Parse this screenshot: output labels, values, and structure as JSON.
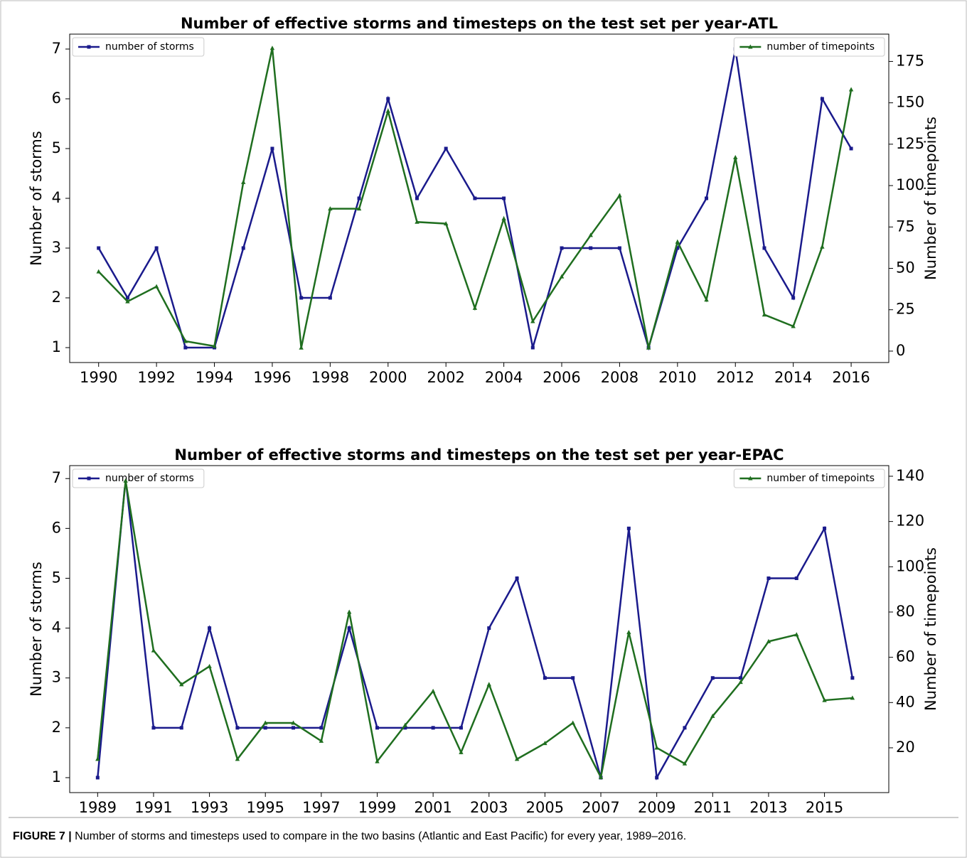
{
  "chart_data": [
    {
      "type": "line",
      "title": "Number of effective storms and timesteps on the test set per year-ATL",
      "ylabel": "Number of storms",
      "y2label": "Number of timepoints",
      "x": [
        1990,
        1991,
        1992,
        1993,
        1994,
        1995,
        1996,
        1997,
        1998,
        1999,
        2000,
        2001,
        2002,
        2003,
        2004,
        2005,
        2006,
        2007,
        2008,
        2009,
        2010,
        2011,
        2012,
        2013,
        2014,
        2015,
        2016
      ],
      "xlim": [
        1989.0,
        2017.3
      ],
      "xticks": [
        1990,
        1992,
        1994,
        1996,
        1998,
        2000,
        2002,
        2004,
        2006,
        2008,
        2010,
        2012,
        2014,
        2016
      ],
      "ylim": [
        0.7,
        7.3
      ],
      "yticks": [
        1,
        2,
        3,
        4,
        5,
        6,
        7
      ],
      "y2lim": [
        -6.9,
        191.5
      ],
      "y2ticks": [
        0,
        25,
        50,
        75,
        100,
        125,
        150,
        175
      ],
      "series": [
        {
          "name": "number of storms",
          "color": "#1a1a8c",
          "marker": "square",
          "legend": "upper left",
          "values": [
            3,
            2,
            3,
            1,
            1,
            3,
            5,
            2,
            2,
            4,
            6,
            4,
            5,
            4,
            4,
            1,
            3,
            3,
            3,
            1,
            3,
            4,
            7,
            3,
            2,
            6,
            5
          ]
        },
        {
          "name": "number of timepoints",
          "color": "#1f6e1f",
          "marker": "triangle",
          "legend": "upper right",
          "axis": "y2",
          "values": [
            48,
            30,
            39,
            6,
            3,
            102,
            183,
            2,
            86,
            86,
            145,
            78,
            77,
            26,
            80,
            18,
            45,
            70,
            94,
            2,
            66,
            31,
            117,
            22,
            15,
            63,
            158
          ]
        }
      ]
    },
    {
      "type": "line",
      "title": "Number of effective storms and timesteps on the test set per year-EPAC",
      "ylabel": "Number of storms",
      "y2label": "Number of timepoints",
      "x": [
        1989,
        1990,
        1991,
        1992,
        1993,
        1994,
        1995,
        1996,
        1997,
        1998,
        1999,
        2000,
        2001,
        2002,
        2003,
        2004,
        2005,
        2006,
        2007,
        2008,
        2009,
        2010,
        2011,
        2012,
        2013,
        2014,
        2015,
        2016
      ],
      "xlim": [
        1988.0,
        2017.3
      ],
      "xticks": [
        1989,
        1991,
        1993,
        1995,
        1997,
        1999,
        2001,
        2003,
        2005,
        2007,
        2009,
        2011,
        2013,
        2015
      ],
      "ylim": [
        0.7,
        7.26
      ],
      "yticks": [
        1,
        2,
        3,
        4,
        5,
        6,
        7
      ],
      "y2lim": [
        0.2,
        144.7
      ],
      "y2ticks": [
        20,
        40,
        60,
        80,
        100,
        120,
        140
      ],
      "series": [
        {
          "name": "number of storms",
          "color": "#1a1a8c",
          "marker": "square",
          "legend": "upper left",
          "values": [
            1,
            7,
            2,
            2,
            4,
            2,
            2,
            2,
            2,
            4,
            2,
            2,
            2,
            2,
            4,
            5,
            3,
            3,
            1,
            6,
            1,
            2,
            3,
            3,
            5,
            5,
            6,
            3
          ]
        },
        {
          "name": "number of timepoints",
          "color": "#1f6e1f",
          "marker": "triangle",
          "legend": "upper right",
          "axis": "y2",
          "values": [
            15,
            138,
            63,
            48,
            56,
            15,
            31,
            31,
            23,
            80,
            14,
            30,
            45,
            18,
            48,
            15,
            22,
            31,
            7,
            71,
            20,
            13,
            34,
            49,
            67,
            70,
            41,
            42
          ]
        }
      ]
    }
  ],
  "caption": {
    "label": "FIGURE 7 |",
    "text": "Number of storms and timesteps used to compare in the two basins (Atlantic and East Pacific) for every year, 1989–2016."
  }
}
